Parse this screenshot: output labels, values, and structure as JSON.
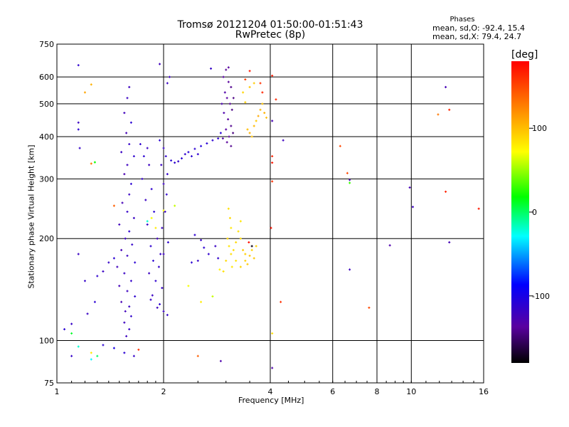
{
  "chart_data": {
    "type": "scatter",
    "title": "Tromsø 20121204 01:50:00-01:51:43",
    "subtitle": "RwPretec (8p)",
    "xlabel": "Frequency [MHz]",
    "ylabel": "Stationary phase Virtual Height [km]",
    "x_scale": "log",
    "y_scale": "log",
    "xlim": [
      1,
      16
    ],
    "ylim": [
      75,
      750
    ],
    "x_ticks": [
      "1",
      "2",
      "4",
      "6",
      "8",
      "10",
      "16"
    ],
    "y_ticks": [
      "75",
      "100",
      "200",
      "300",
      "400",
      "500",
      "600",
      "750"
    ],
    "grid": true,
    "phase_stats": {
      "title": "Phases",
      "o_line": "mean, sd,O: -92.4, 15.4",
      "x_line": "mean, sd,X:  79.4, 24.7"
    },
    "colorbar": {
      "unit": "[deg]",
      "range": [
        -180,
        180
      ],
      "ticks": [
        "100",
        "0",
        "-100"
      ],
      "tick_values": [
        100,
        0,
        -100
      ]
    },
    "points": [
      [
        1.6,
        560,
        -120
      ],
      [
        1.58,
        520,
        -118
      ],
      [
        1.55,
        470,
        -122
      ],
      [
        1.62,
        440,
        -110
      ],
      [
        1.57,
        410,
        -125
      ],
      [
        1.6,
        380,
        -115
      ],
      [
        1.52,
        360,
        -118
      ],
      [
        1.65,
        350,
        -112
      ],
      [
        1.58,
        330,
        -120
      ],
      [
        1.55,
        310,
        -128
      ],
      [
        1.62,
        290,
        -110
      ],
      [
        1.6,
        270,
        -118
      ],
      [
        1.53,
        255,
        -125
      ],
      [
        1.58,
        240,
        -115
      ],
      [
        1.65,
        230,
        -118
      ],
      [
        1.5,
        220,
        -122
      ],
      [
        1.6,
        210,
        -112
      ],
      [
        1.56,
        200,
        -120
      ],
      [
        1.63,
        192,
        -115
      ],
      [
        1.52,
        185,
        -125
      ],
      [
        1.58,
        178,
        -118
      ],
      [
        1.66,
        170,
        -110
      ],
      [
        1.48,
        165,
        -122
      ],
      [
        1.55,
        158,
        -118
      ],
      [
        1.62,
        150,
        -114
      ],
      [
        1.5,
        145,
        -124
      ],
      [
        1.58,
        140,
        -120
      ],
      [
        1.66,
        135,
        -112
      ],
      [
        1.52,
        130,
        -126
      ],
      [
        1.6,
        126,
        -118
      ],
      [
        1.56,
        122,
        -122
      ],
      [
        1.62,
        118,
        -114
      ],
      [
        1.55,
        113,
        -120
      ],
      [
        1.6,
        108,
        -116
      ],
      [
        1.57,
        103,
        -120
      ],
      [
        1.72,
        380,
        -112
      ],
      [
        1.8,
        370,
        -118
      ],
      [
        1.76,
        350,
        -110
      ],
      [
        1.82,
        330,
        -120
      ],
      [
        1.74,
        300,
        -115
      ],
      [
        1.85,
        280,
        -112
      ],
      [
        1.78,
        260,
        -118
      ],
      [
        1.88,
        240,
        -110
      ],
      [
        1.8,
        220,
        -116
      ],
      [
        1.92,
        200,
        -122
      ],
      [
        1.84,
        190,
        -112
      ],
      [
        1.96,
        180,
        -118
      ],
      [
        1.87,
        172,
        -110
      ],
      [
        1.94,
        165,
        -115
      ],
      [
        1.82,
        158,
        -120
      ],
      [
        1.9,
        150,
        -112
      ],
      [
        1.98,
        143,
        -116
      ],
      [
        1.86,
        136,
        -118
      ],
      [
        1.95,
        128,
        -112
      ],
      [
        2.0,
        122,
        -118
      ],
      [
        2.05,
        119,
        -114
      ],
      [
        1.92,
        125,
        -120
      ],
      [
        1.84,
        132,
        -116
      ],
      [
        1.95,
        390,
        -110
      ],
      [
        2.0,
        370,
        -116
      ],
      [
        2.03,
        350,
        -112
      ],
      [
        1.97,
        330,
        -118
      ],
      [
        2.05,
        310,
        -114
      ],
      [
        2.0,
        290,
        -120
      ],
      [
        2.04,
        270,
        -112
      ],
      [
        2.02,
        240,
        -116
      ],
      [
        1.98,
        215,
        -118
      ],
      [
        2.06,
        195,
        -112
      ],
      [
        2.0,
        180,
        -120
      ],
      [
        2.1,
        340,
        -110
      ],
      [
        2.15,
        335,
        -112
      ],
      [
        2.2,
        338,
        -115
      ],
      [
        2.25,
        345,
        -110
      ],
      [
        2.3,
        355,
        -112
      ],
      [
        2.35,
        360,
        -108
      ],
      [
        2.45,
        368,
        -110
      ],
      [
        2.55,
        375,
        -105
      ],
      [
        2.65,
        382,
        -108
      ],
      [
        2.75,
        390,
        -110
      ],
      [
        2.85,
        395,
        -112
      ],
      [
        2.9,
        410,
        -108
      ],
      [
        2.5,
        355,
        -112
      ],
      [
        2.4,
        350,
        -110
      ],
      [
        2.95,
        600,
        -135
      ],
      [
        3.0,
        630,
        -140
      ],
      [
        3.05,
        580,
        -138
      ],
      [
        3.1,
        560,
        -142
      ],
      [
        2.98,
        540,
        -132
      ],
      [
        3.02,
        520,
        -136
      ],
      [
        3.08,
        500,
        -140
      ],
      [
        3.12,
        480,
        -145
      ],
      [
        2.96,
        470,
        -130
      ],
      [
        3.04,
        450,
        -138
      ],
      [
        3.1,
        430,
        -142
      ],
      [
        3.0,
        420,
        -135
      ],
      [
        3.06,
        400,
        -140
      ],
      [
        2.94,
        395,
        -132
      ],
      [
        3.14,
        410,
        -146
      ],
      [
        3.02,
        385,
        -138
      ],
      [
        3.1,
        375,
        -142
      ],
      [
        3.05,
        640,
        -136
      ],
      [
        3.15,
        520,
        -144
      ],
      [
        2.92,
        500,
        -128
      ],
      [
        1.15,
        650,
        -112
      ],
      [
        1.15,
        440,
        -118
      ],
      [
        1.15,
        420,
        -110
      ],
      [
        1.16,
        370,
        -115
      ],
      [
        1.15,
        180,
        -118
      ],
      [
        1.2,
        150,
        -115
      ],
      [
        1.28,
        130,
        -110
      ],
      [
        1.22,
        120,
        -118
      ],
      [
        1.1,
        112,
        -116
      ],
      [
        1.05,
        108,
        -110
      ],
      [
        1.3,
        155,
        -112
      ],
      [
        1.35,
        160,
        -118
      ],
      [
        1.4,
        170,
        -115
      ],
      [
        1.45,
        175,
        -110
      ],
      [
        2.05,
        575,
        -118
      ],
      [
        2.08,
        600,
        -120
      ],
      [
        1.95,
        655,
        -122
      ],
      [
        2.72,
        635,
        -116
      ],
      [
        2.45,
        205,
        -112
      ],
      [
        2.55,
        198,
        -116
      ],
      [
        2.6,
        188,
        -110
      ],
      [
        2.68,
        180,
        -112
      ],
      [
        2.8,
        190,
        -118
      ],
      [
        2.85,
        175,
        -114
      ],
      [
        2.4,
        170,
        -110
      ],
      [
        2.5,
        172,
        -116
      ],
      [
        3.45,
        420,
        100
      ],
      [
        3.5,
        410,
        105
      ],
      [
        3.55,
        400,
        98
      ],
      [
        3.6,
        430,
        102
      ],
      [
        3.65,
        445,
        95
      ],
      [
        3.7,
        460,
        108
      ],
      [
        3.75,
        480,
        102
      ],
      [
        3.8,
        500,
        98
      ],
      [
        3.85,
        470,
        105
      ],
      [
        3.9,
        455,
        100
      ],
      [
        3.35,
        540,
        90
      ],
      [
        3.5,
        560,
        96
      ],
      [
        3.6,
        575,
        94
      ],
      [
        3.4,
        505,
        92
      ],
      [
        3.05,
        245,
        85
      ],
      [
        3.08,
        230,
        88
      ],
      [
        3.1,
        215,
        82
      ],
      [
        3.03,
        200,
        90
      ],
      [
        3.06,
        190,
        84
      ],
      [
        3.1,
        180,
        86
      ],
      [
        3.0,
        172,
        88
      ],
      [
        3.12,
        165,
        82
      ],
      [
        2.95,
        160,
        85
      ],
      [
        2.88,
        162,
        78
      ],
      [
        3.35,
        185,
        95
      ],
      [
        3.4,
        180,
        92
      ],
      [
        3.5,
        178,
        98
      ],
      [
        3.55,
        185,
        90
      ],
      [
        3.6,
        175,
        96
      ],
      [
        3.45,
        168,
        94
      ],
      [
        3.65,
        190,
        92
      ],
      [
        3.3,
        200,
        88
      ],
      [
        3.4,
        590,
        155
      ],
      [
        3.5,
        625,
        170
      ],
      [
        3.75,
        575,
        160
      ],
      [
        3.8,
        540,
        165
      ],
      [
        4.05,
        605,
        170
      ],
      [
        4.15,
        515,
        165
      ],
      [
        4.05,
        350,
        165
      ],
      [
        4.05,
        335,
        170
      ],
      [
        4.05,
        295,
        160
      ],
      [
        4.02,
        215,
        172
      ],
      [
        4.05,
        445,
        -125
      ],
      [
        4.35,
        390,
        -120
      ],
      [
        4.05,
        83,
        -130
      ],
      [
        4.28,
        130,
        160
      ],
      [
        4.05,
        105,
        85
      ],
      [
        3.55,
        190,
        -175
      ],
      [
        3.48,
        195,
        175
      ],
      [
        1.2,
        540,
        110
      ],
      [
        1.25,
        570,
        105
      ],
      [
        1.25,
        333,
        130
      ],
      [
        1.28,
        336,
        20
      ],
      [
        1.85,
        230,
        70
      ],
      [
        1.9,
        215,
        80
      ],
      [
        2.0,
        242,
        75
      ],
      [
        2.15,
        250,
        60
      ],
      [
        2.35,
        145,
        70
      ],
      [
        2.55,
        130,
        80
      ],
      [
        2.75,
        135,
        60
      ],
      [
        1.45,
        250,
        140
      ],
      [
        1.8,
        225,
        -20
      ],
      [
        1.1,
        105,
        10
      ],
      [
        1.15,
        96,
        -20
      ],
      [
        1.25,
        88,
        -30
      ],
      [
        1.3,
        90,
        0
      ],
      [
        1.35,
        97,
        -110
      ],
      [
        1.45,
        95,
        -100
      ],
      [
        1.55,
        92,
        -110
      ],
      [
        1.65,
        90,
        -115
      ],
      [
        1.7,
        94,
        160
      ],
      [
        1.25,
        92,
        80
      ],
      [
        1.1,
        90,
        -115
      ],
      [
        2.5,
        90,
        140
      ],
      [
        2.9,
        87,
        -130
      ],
      [
        6.3,
        375,
        150
      ],
      [
        6.6,
        312,
        150
      ],
      [
        6.7,
        298,
        -125
      ],
      [
        6.7,
        292,
        30
      ],
      [
        6.7,
        162,
        -120
      ],
      [
        7.6,
        125,
        150
      ],
      [
        8.7,
        191,
        -130
      ],
      [
        9.9,
        283,
        -125
      ],
      [
        10.1,
        248,
        -120
      ],
      [
        12.5,
        560,
        -125
      ],
      [
        12.5,
        275,
        165
      ],
      [
        12.8,
        195,
        -125
      ],
      [
        11.9,
        465,
        130
      ],
      [
        12.8,
        480,
        165
      ],
      [
        15.5,
        245,
        170
      ],
      [
        3.3,
        225,
        82
      ],
      [
        3.25,
        210,
        85
      ],
      [
        3.2,
        195,
        88
      ],
      [
        3.15,
        185,
        86
      ],
      [
        3.2,
        172,
        84
      ],
      [
        3.3,
        165,
        90
      ],
      [
        3.4,
        172,
        92
      ]
    ]
  }
}
